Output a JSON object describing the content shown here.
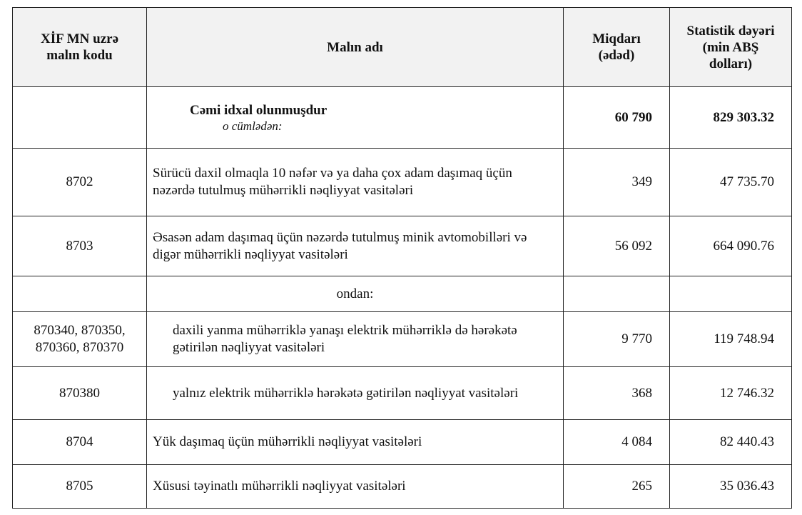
{
  "headers": {
    "code": "XİF MN uzrə malın kodu",
    "name": "Malın adı",
    "qty": "Miqdarı (ədəd)",
    "value": "Statistik dəyəri (min ABŞ dolları)"
  },
  "total": {
    "label": "Cəmi idxal olunmuşdur",
    "sublabel": "o cümlədən:",
    "qty": "60 790",
    "value": "829 303.32"
  },
  "ondan_label": "ondan:",
  "rows": [
    {
      "code": "8702",
      "name": "Sürücü daxil olmaqla 10 nəfər və ya daha çox adam daşımaq üçün nəzərdə tutulmuş mühərrikli nəqliyyat vasitələri",
      "qty": "349",
      "value": "47 735.70",
      "indent": false
    },
    {
      "code": "8703",
      "name": "Əsasən adam daşımaq üçün nəzərdə tutulmuş minik avtomobilləri və digər mühərrikli nəqliyyat vasitələri",
      "qty": "56 092",
      "value": "664 090.76",
      "indent": false
    },
    {
      "ondan": true
    },
    {
      "code": "870340, 870350, 870360, 870370",
      "name": "daxili yanma mühərriklə yanaşı elektrik mühərriklə də hərəkətə gətirilən nəqliyyat vasitələri",
      "qty": "9 770",
      "value": "119 748.94",
      "indent": true
    },
    {
      "code": "870380",
      "name": "yalnız elektrik mühərriklə hərəkətə gətirilən nəqliyyat vasitələri",
      "qty": "368",
      "value": "12 746.32",
      "indent": true
    },
    {
      "code": "8704",
      "name": "Yük daşımaq üçün mühərrikli nəqliyyat vasitələri",
      "qty": "4 084",
      "value": "82 440.43",
      "indent": false
    },
    {
      "code": "8705",
      "name": "Xüsusi təyinatlı mühərrikli nəqliyyat vasitələri",
      "qty": "265",
      "value": "35 036.43",
      "indent": false
    }
  ]
}
